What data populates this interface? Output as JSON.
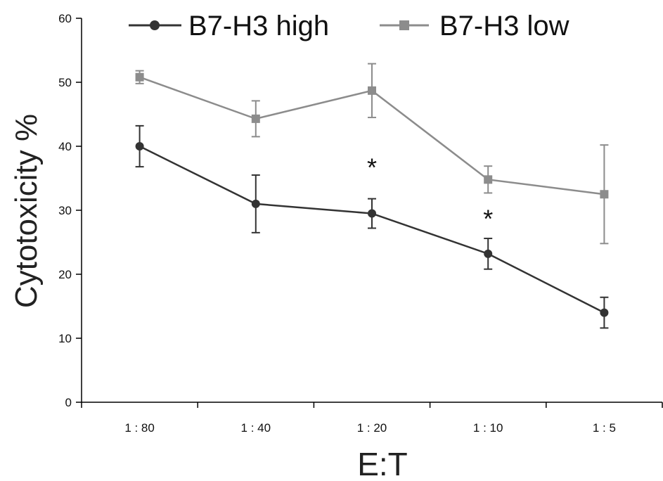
{
  "chart_data": {
    "type": "line",
    "title": "",
    "xlabel": "E:T",
    "ylabel": "Cytotoxicity %",
    "categories": [
      "1 : 80",
      "1 : 40",
      "1 : 20",
      "1 : 10",
      "1 : 5"
    ],
    "ylim": [
      0,
      60
    ],
    "yticks": [
      0,
      10,
      20,
      30,
      40,
      50,
      60
    ],
    "legend_position": "top",
    "grid": false,
    "series": [
      {
        "name": "B7-H3 high",
        "marker": "circle",
        "color": "#333333",
        "values": [
          40.0,
          31.0,
          29.5,
          23.2,
          14.0
        ],
        "error": [
          3.2,
          4.5,
          2.3,
          2.4,
          2.4
        ]
      },
      {
        "name": "B7-H3 low",
        "marker": "square",
        "color": "#8c8c8c",
        "values": [
          50.8,
          44.3,
          48.7,
          34.8,
          32.5
        ],
        "error": [
          1.0,
          2.8,
          4.2,
          2.1,
          7.7
        ]
      }
    ],
    "annotations": [
      {
        "text": "*",
        "category": "1 : 20",
        "y": 37.3
      },
      {
        "text": "*",
        "category": "1 : 10",
        "y": 29.3
      }
    ]
  }
}
